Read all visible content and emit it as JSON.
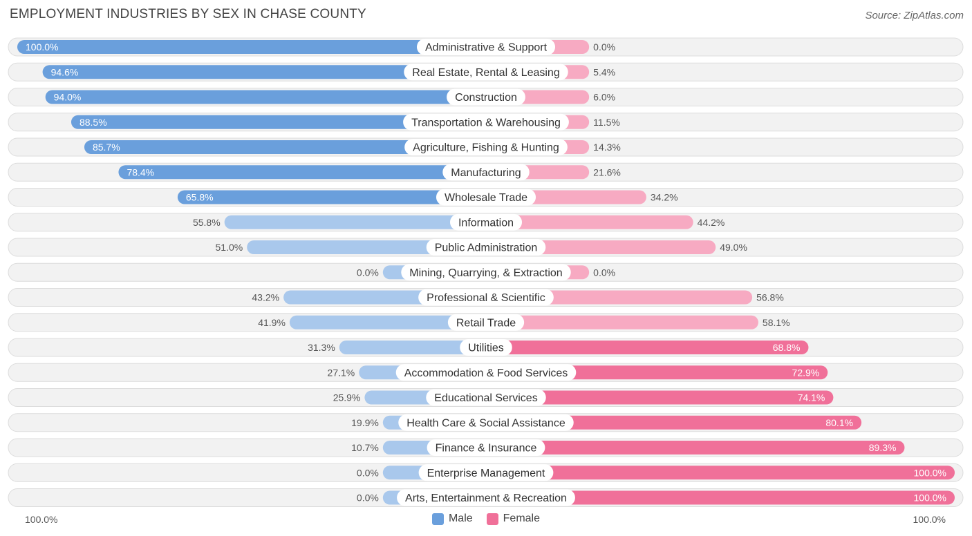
{
  "title": "EMPLOYMENT INDUSTRIES BY SEX IN CHASE COUNTY",
  "source": "Source: ZipAtlas.com",
  "axis": {
    "left_label": "100.0%",
    "right_label": "100.0%"
  },
  "legend": {
    "male": "Male",
    "female": "Female"
  },
  "colors": {
    "male": "#6a9fdc",
    "male_light": "#a9c8ec",
    "female": "#f07099",
    "female_light": "#f7aac2",
    "row_bg": "#f2f2f2",
    "row_border": "#dcdcdc"
  },
  "chart_data": {
    "type": "bar",
    "orientation": "horizontal-diverging",
    "title": "EMPLOYMENT INDUSTRIES BY SEX IN CHASE COUNTY",
    "xlim": [
      -100,
      100
    ],
    "categories": [
      "Administrative & Support",
      "Real Estate, Rental & Leasing",
      "Construction",
      "Transportation & Warehousing",
      "Agriculture, Fishing & Hunting",
      "Manufacturing",
      "Wholesale Trade",
      "Information",
      "Public Administration",
      "Mining, Quarrying, & Extraction",
      "Professional & Scientific",
      "Retail Trade",
      "Utilities",
      "Accommodation & Food Services",
      "Educational Services",
      "Health Care & Social Assistance",
      "Finance & Insurance",
      "Enterprise Management",
      "Arts, Entertainment & Recreation"
    ],
    "series": [
      {
        "name": "Male",
        "values": [
          100.0,
          94.6,
          94.0,
          88.5,
          85.7,
          78.4,
          65.8,
          55.8,
          51.0,
          0.0,
          43.2,
          41.9,
          31.3,
          27.1,
          25.9,
          19.9,
          10.7,
          0.0,
          0.0
        ],
        "labels": [
          "100.0%",
          "94.6%",
          "94.0%",
          "88.5%",
          "85.7%",
          "78.4%",
          "65.8%",
          "55.8%",
          "51.0%",
          "0.0%",
          "43.2%",
          "41.9%",
          "31.3%",
          "27.1%",
          "25.9%",
          "19.9%",
          "10.7%",
          "0.0%",
          "0.0%"
        ]
      },
      {
        "name": "Female",
        "values": [
          0.0,
          5.4,
          6.0,
          11.5,
          14.3,
          21.6,
          34.2,
          44.2,
          49.0,
          0.0,
          56.8,
          58.1,
          68.8,
          72.9,
          74.1,
          80.1,
          89.3,
          100.0,
          100.0
        ],
        "labels": [
          "0.0%",
          "5.4%",
          "6.0%",
          "11.5%",
          "14.3%",
          "21.6%",
          "34.2%",
          "44.2%",
          "49.0%",
          "0.0%",
          "56.8%",
          "58.1%",
          "68.8%",
          "72.9%",
          "74.1%",
          "80.1%",
          "89.3%",
          "100.0%",
          "100.0%"
        ]
      }
    ]
  }
}
